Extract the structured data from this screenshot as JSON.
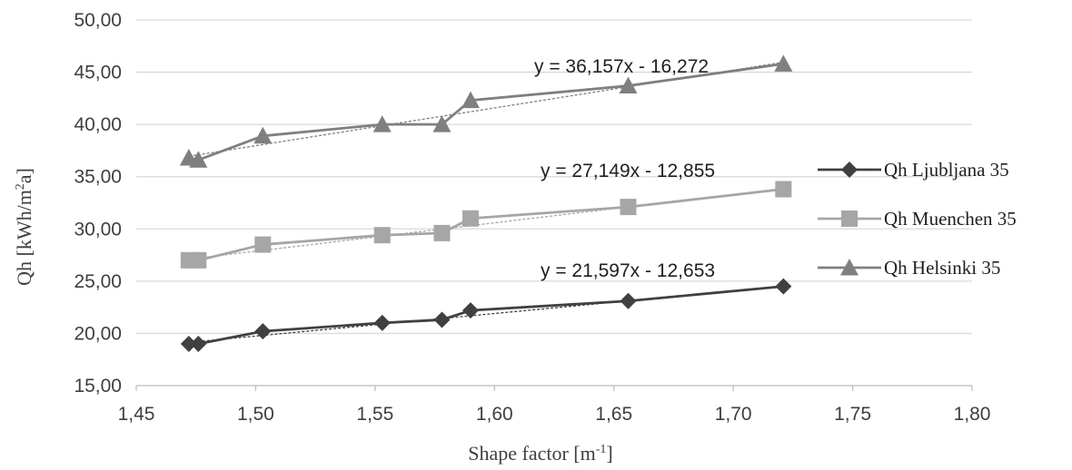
{
  "chart_data": {
    "type": "line",
    "xlabel": "Shape factor [m",
    "xlabel_sup": "-1",
    "xlabel_end": "]",
    "ylabel": "Qh  [kWh/m",
    "ylabel_sup": "2",
    "ylabel_end": "a]",
    "xlim": [
      1.45,
      1.8
    ],
    "ylim": [
      15,
      50
    ],
    "x_ticks": [
      1.45,
      1.5,
      1.55,
      1.6,
      1.65,
      1.7,
      1.75,
      1.8
    ],
    "x_tick_labels": [
      "1,45",
      "1,50",
      "1,55",
      "1,60",
      "1,65",
      "1,70",
      "1,75",
      "1,80"
    ],
    "y_ticks": [
      15,
      20,
      25,
      30,
      35,
      40,
      45,
      50
    ],
    "y_tick_labels": [
      "15,00",
      "20,00",
      "25,00",
      "30,00",
      "35,00",
      "40,00",
      "45,00",
      "50,00"
    ],
    "grid": "horizontal",
    "legend_position": "right",
    "series": [
      {
        "name": "Qh Ljubljana 35",
        "marker": "diamond",
        "color": "#404040",
        "x": [
          1.472,
          1.476,
          1.503,
          1.553,
          1.578,
          1.59,
          1.656,
          1.721
        ],
        "y": [
          19.0,
          19.0,
          20.2,
          21.0,
          21.3,
          22.2,
          23.1,
          24.5
        ],
        "trend_equation": "y = 21,597x - 12,653",
        "trend": [
          21.597,
          -12.653
        ]
      },
      {
        "name": "Qh Muenchen 35",
        "marker": "square",
        "color": "#a6a6a6",
        "x": [
          1.472,
          1.476,
          1.503,
          1.553,
          1.578,
          1.59,
          1.656,
          1.721
        ],
        "y": [
          27.0,
          27.0,
          28.5,
          29.4,
          29.6,
          31.0,
          32.1,
          33.8
        ],
        "trend_equation": "y = 27,149x - 12,855",
        "trend": [
          27.149,
          -12.855
        ]
      },
      {
        "name": "Qh Helsinki 35",
        "marker": "triangle",
        "color": "#7f7f7f",
        "x": [
          1.472,
          1.476,
          1.503,
          1.553,
          1.578,
          1.59,
          1.656,
          1.721
        ],
        "y": [
          36.8,
          36.6,
          38.9,
          40.0,
          40.0,
          42.3,
          43.7,
          45.8
        ],
        "trend_equation": "y = 36,157x - 16,272",
        "trend": [
          36.157,
          -16.272
        ]
      }
    ]
  }
}
